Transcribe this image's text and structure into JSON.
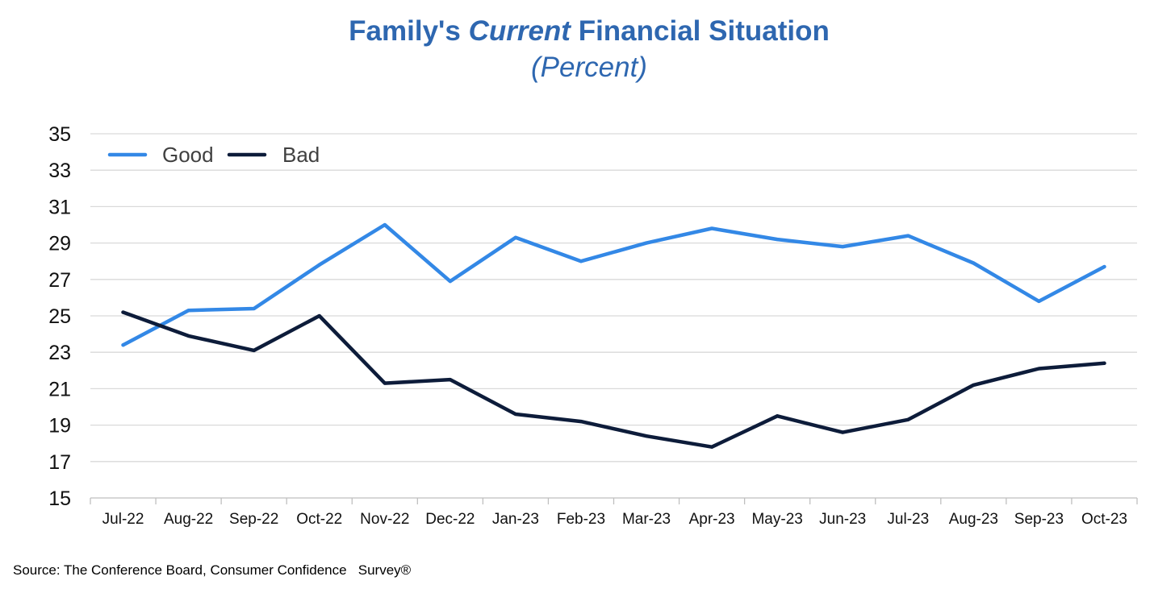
{
  "title": {
    "pre": "Family's ",
    "italic": "Current",
    "post": " Financial Situation",
    "subtitle": "(Percent)"
  },
  "source": "Source: The Conference Board, Consumer Confidence   Survey®",
  "colors": {
    "good": "#3388e6",
    "bad": "#0d1c3a",
    "title": "#2e67b0",
    "grid": "#d9d9d9"
  },
  "chart_data": {
    "type": "line",
    "categories": [
      "Jul-22",
      "Aug-22",
      "Sep-22",
      "Oct-22",
      "Nov-22",
      "Dec-22",
      "Jan-23",
      "Feb-23",
      "Mar-23",
      "Apr-23",
      "May-23",
      "Jun-23",
      "Jul-23",
      "Aug-23",
      "Sep-23",
      "Oct-23"
    ],
    "series": [
      {
        "name": "Good",
        "color": "#3388e6",
        "values": [
          23.4,
          25.3,
          25.4,
          27.8,
          30.0,
          26.9,
          29.3,
          28.0,
          29.0,
          29.8,
          29.2,
          28.8,
          29.4,
          27.9,
          25.8,
          27.7
        ]
      },
      {
        "name": "Bad",
        "color": "#0d1c3a",
        "values": [
          25.2,
          23.9,
          23.1,
          25.0,
          21.3,
          21.5,
          19.6,
          19.2,
          18.4,
          17.8,
          19.5,
          18.6,
          19.3,
          21.2,
          22.1,
          22.4
        ]
      }
    ],
    "yticks": [
      "15",
      "17",
      "19",
      "21",
      "23",
      "25",
      "27",
      "29",
      "31",
      "33",
      "35"
    ],
    "ylim": [
      15,
      35
    ],
    "grid": true,
    "legend": "top-left",
    "xlabel": "",
    "ylabel": ""
  }
}
